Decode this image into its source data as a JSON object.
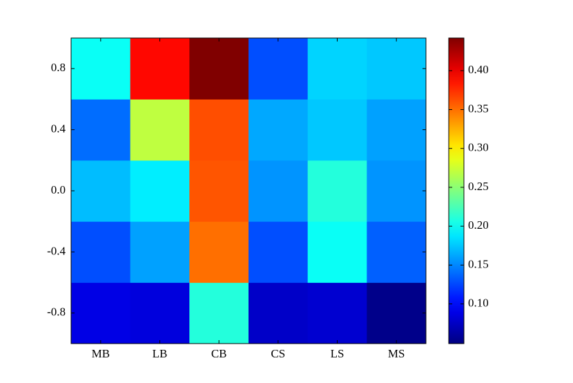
{
  "chart_data": {
    "type": "heatmap",
    "categories": [
      "MB",
      "LB",
      "CB",
      "CS",
      "LS",
      "MS"
    ],
    "y": [
      -0.8,
      -0.4,
      0.0,
      0.4,
      0.8
    ],
    "values": [
      [
        0.088,
        0.085,
        0.21,
        0.077,
        0.08,
        0.053
      ],
      [
        0.128,
        0.16,
        0.35,
        0.128,
        0.2,
        0.135
      ],
      [
        0.171,
        0.19,
        0.36,
        0.155,
        0.21,
        0.155
      ],
      [
        0.14,
        0.27,
        0.363,
        0.163,
        0.175,
        0.16
      ],
      [
        0.2,
        0.39,
        0.442,
        0.128,
        0.18,
        0.175
      ]
    ],
    "ylim": [
      -1,
      1
    ],
    "yticks": [
      -0.8,
      -0.4,
      {
        "value": 0.0,
        "label": "0.0"
      },
      0.4,
      0.8
    ],
    "colormap": "jet",
    "clim": [
      0.049,
      0.442
    ],
    "cticks": [
      {
        "value": 0.1,
        "label": "0.10"
      },
      {
        "value": 0.15,
        "label": "0.15"
      },
      {
        "value": 0.2,
        "label": "0.20"
      },
      {
        "value": 0.25,
        "label": "0.25"
      },
      {
        "value": 0.3,
        "label": "0.30"
      },
      {
        "value": 0.35,
        "label": "0.35"
      },
      {
        "value": 0.4,
        "label": "0.40"
      }
    ]
  }
}
